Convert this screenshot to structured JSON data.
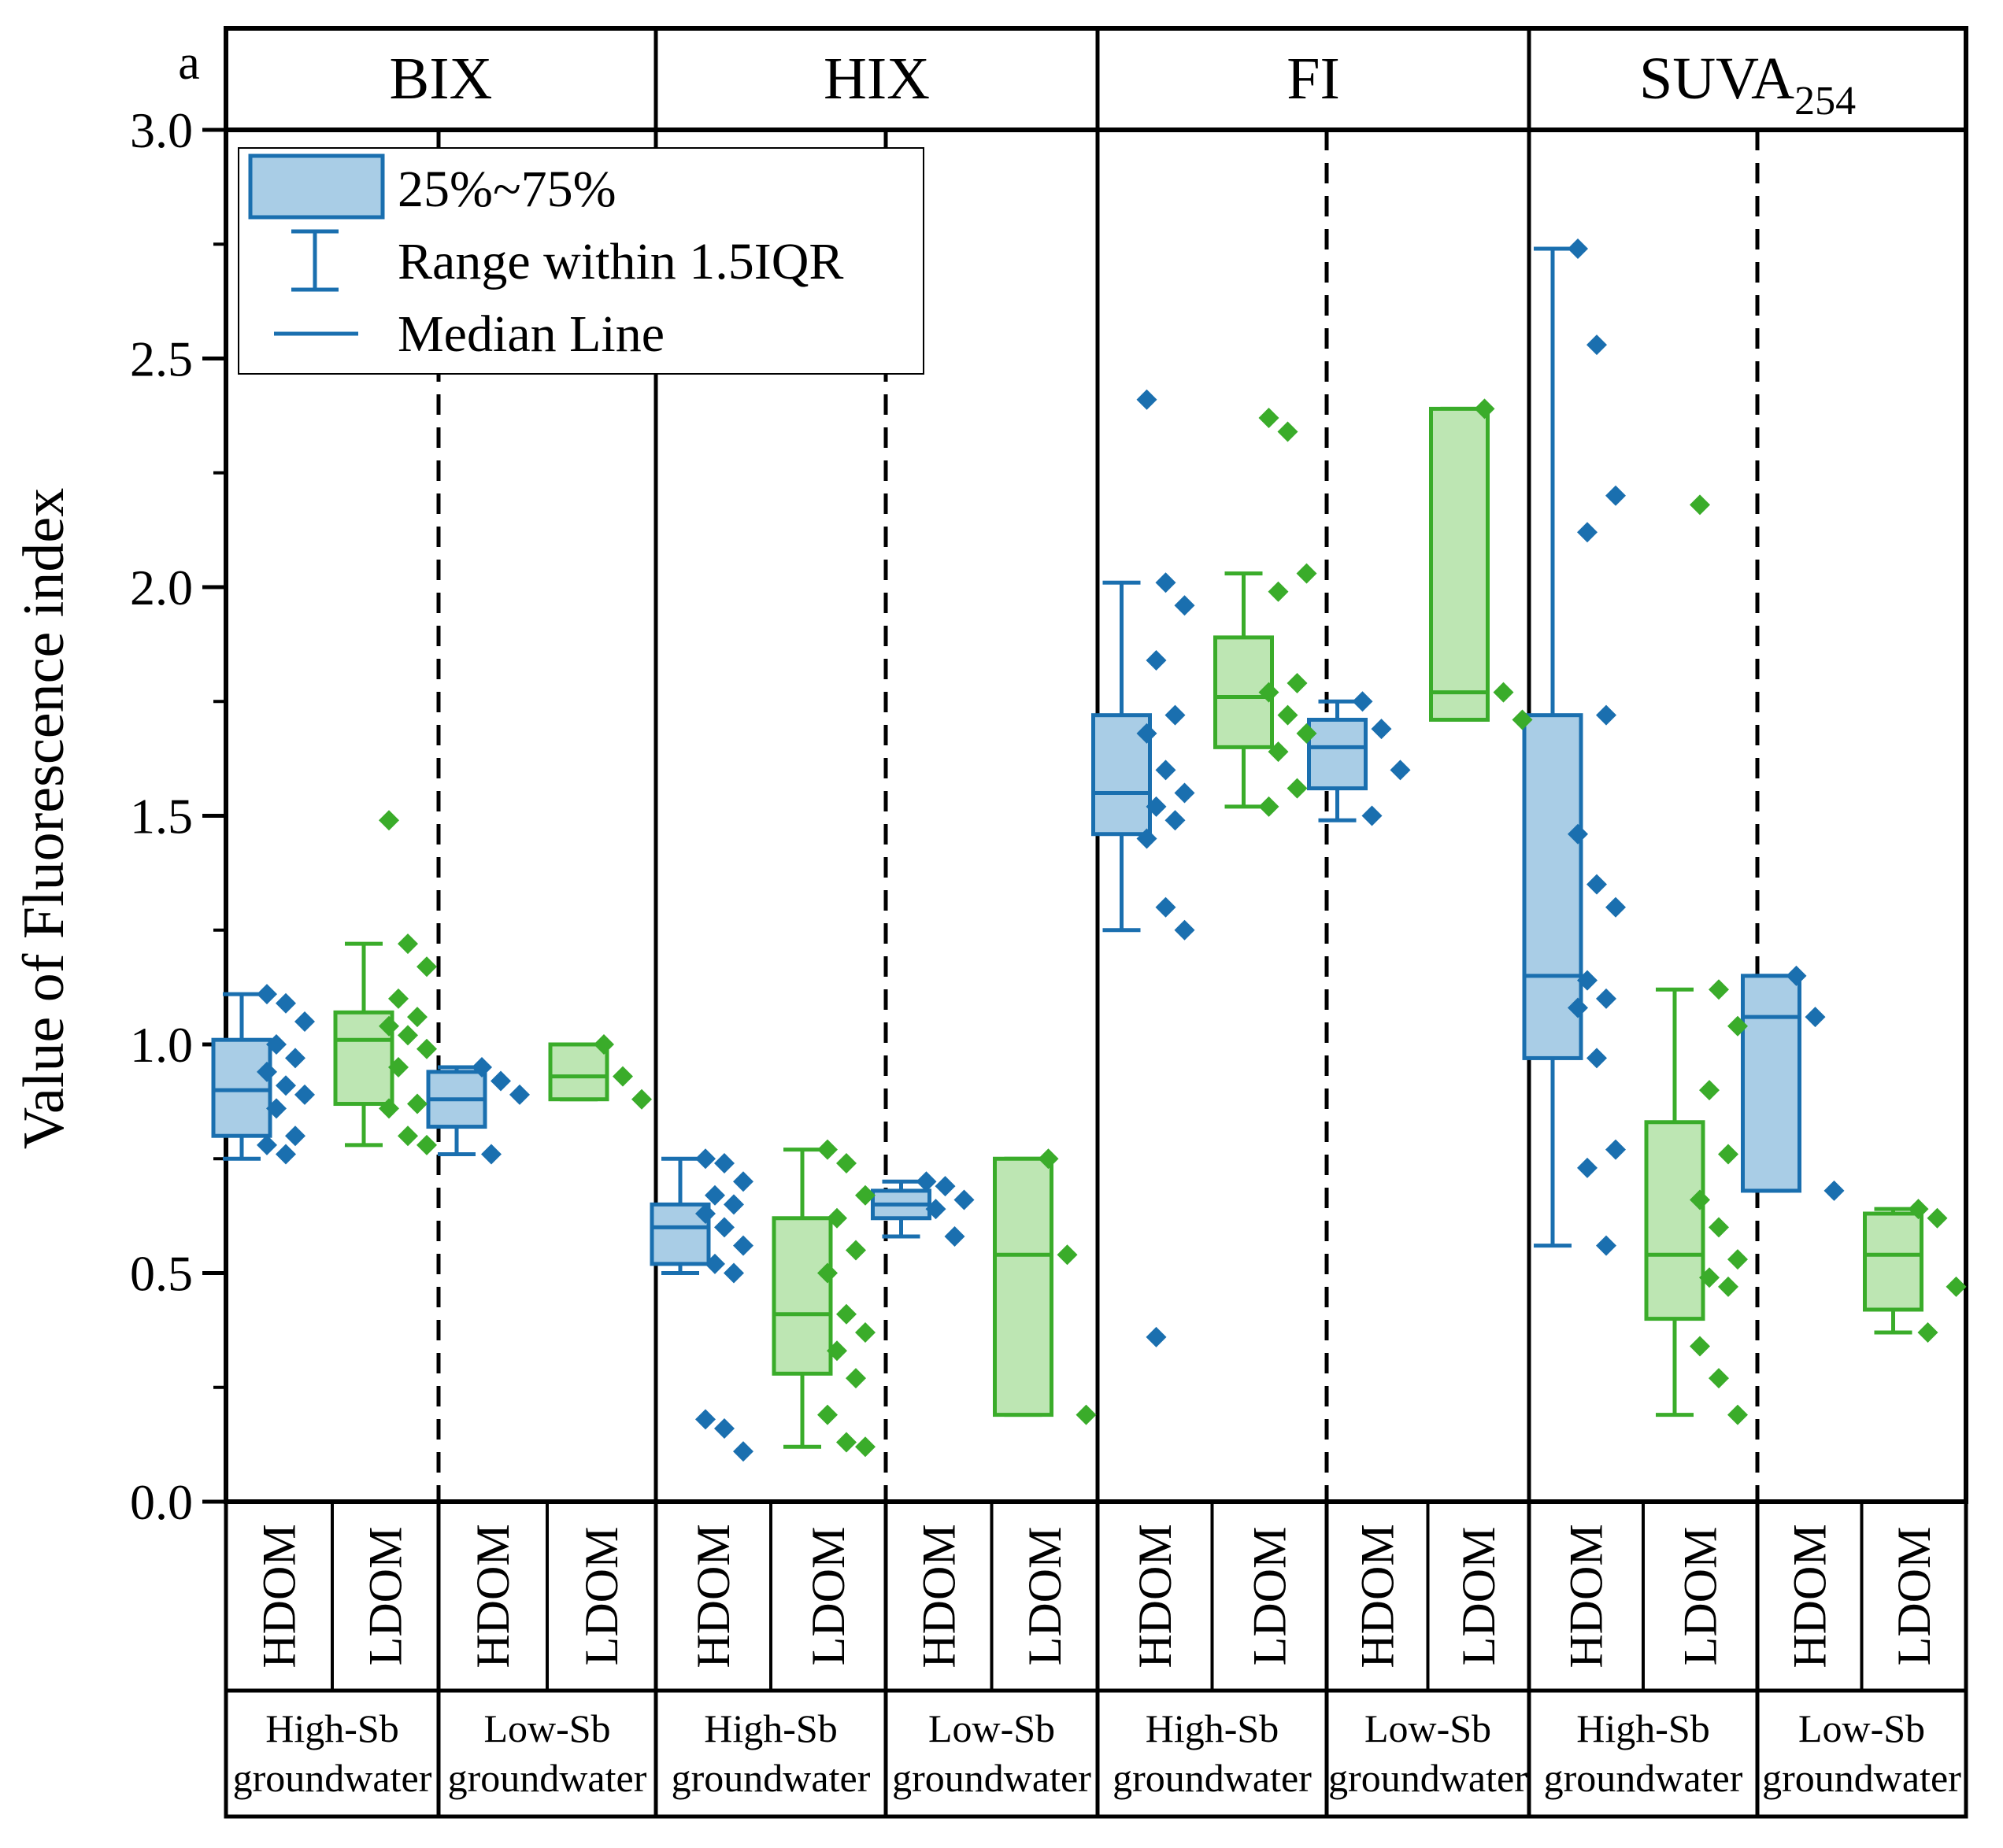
{
  "chart_data": {
    "type": "box",
    "panel_label": "a",
    "ylabel": "Value of Fluorescence index",
    "ylim": [
      0,
      3
    ],
    "yticks": [
      "0.0",
      "0.5",
      "1.0",
      "1.5",
      "2.0",
      "2.5",
      "3.0"
    ],
    "colors": {
      "HDOM": "#1a6faf",
      "LDOM": "#3aac2a",
      "HDOM_fill": "#a9cde6",
      "LDOM_fill": "#bde6b3"
    },
    "legend": {
      "box": "25%~75%",
      "whisker": "Range within 1.5IQR",
      "median": "Median Line"
    },
    "index_labels": [
      {
        "main": "BIX",
        "sub": ""
      },
      {
        "main": "HIX",
        "sub": ""
      },
      {
        "main": "FI",
        "sub": ""
      },
      {
        "main": "SUVA",
        "sub": "254"
      }
    ],
    "dom_labels": [
      "HDOM",
      "LDOM"
    ],
    "group_labels": [
      {
        "line1": "High-Sb",
        "line2": "groundwater"
      },
      {
        "line1": "Low-Sb",
        "line2": "groundwater"
      }
    ],
    "series": [
      {
        "index": "BIX",
        "group": "High-Sb groundwater",
        "dom": "HDOM",
        "q1": 0.8,
        "median": 0.9,
        "q3": 1.01,
        "wlow": 0.75,
        "whigh": 1.11,
        "points": [
          1.11,
          1.09,
          1.05,
          1.0,
          0.97,
          0.94,
          0.91,
          0.89,
          0.86,
          0.8,
          0.78,
          0.76
        ]
      },
      {
        "index": "BIX",
        "group": "High-Sb groundwater",
        "dom": "LDOM",
        "q1": 0.87,
        "median": 1.01,
        "q3": 1.07,
        "wlow": 0.78,
        "whigh": 1.22,
        "points": [
          1.49,
          1.22,
          1.17,
          1.1,
          1.06,
          1.04,
          1.02,
          0.99,
          0.95,
          0.87,
          0.86,
          0.8,
          0.78
        ]
      },
      {
        "index": "BIX",
        "group": "Low-Sb groundwater",
        "dom": "HDOM",
        "q1": 0.82,
        "median": 0.88,
        "q3": 0.94,
        "wlow": 0.76,
        "whigh": 0.95,
        "points": [
          0.95,
          0.92,
          0.89,
          0.76
        ]
      },
      {
        "index": "BIX",
        "group": "Low-Sb groundwater",
        "dom": "LDOM",
        "q1": 0.88,
        "median": 0.93,
        "q3": 1.0,
        "wlow": 0.88,
        "whigh": 1.0,
        "points": [
          1.0,
          0.93,
          0.88
        ]
      },
      {
        "index": "HIX",
        "group": "High-Sb groundwater",
        "dom": "HDOM",
        "q1": 0.52,
        "median": 0.6,
        "q3": 0.65,
        "wlow": 0.5,
        "whigh": 0.75,
        "points": [
          0.75,
          0.74,
          0.7,
          0.67,
          0.65,
          0.63,
          0.6,
          0.56,
          0.52,
          0.5,
          0.18,
          0.16,
          0.11
        ]
      },
      {
        "index": "HIX",
        "group": "High-Sb groundwater",
        "dom": "LDOM",
        "q1": 0.28,
        "median": 0.41,
        "q3": 0.62,
        "wlow": 0.12,
        "whigh": 0.77,
        "points": [
          0.77,
          0.74,
          0.67,
          0.62,
          0.55,
          0.5,
          0.41,
          0.37,
          0.33,
          0.27,
          0.19,
          0.13,
          0.12
        ]
      },
      {
        "index": "HIX",
        "group": "Low-Sb groundwater",
        "dom": "HDOM",
        "q1": 0.62,
        "median": 0.65,
        "q3": 0.68,
        "wlow": 0.58,
        "whigh": 0.7,
        "points": [
          0.7,
          0.69,
          0.66,
          0.64,
          0.58
        ]
      },
      {
        "index": "HIX",
        "group": "Low-Sb groundwater",
        "dom": "LDOM",
        "q1": 0.19,
        "median": 0.54,
        "q3": 0.75,
        "wlow": 0.19,
        "whigh": 0.75,
        "points": [
          0.75,
          0.54,
          0.19
        ]
      },
      {
        "index": "FI",
        "group": "High-Sb groundwater",
        "dom": "HDOM",
        "q1": 1.46,
        "median": 1.55,
        "q3": 1.72,
        "wlow": 1.25,
        "whigh": 2.01,
        "points": [
          2.41,
          2.01,
          1.96,
          1.84,
          1.72,
          1.68,
          1.6,
          1.55,
          1.52,
          1.49,
          1.45,
          1.3,
          1.25,
          0.36
        ]
      },
      {
        "index": "FI",
        "group": "High-Sb groundwater",
        "dom": "LDOM",
        "q1": 1.65,
        "median": 1.76,
        "q3": 1.89,
        "wlow": 1.52,
        "whigh": 2.03,
        "points": [
          2.37,
          2.34,
          2.03,
          1.99,
          1.79,
          1.77,
          1.72,
          1.68,
          1.64,
          1.56,
          1.52
        ]
      },
      {
        "index": "FI",
        "group": "Low-Sb groundwater",
        "dom": "HDOM",
        "q1": 1.56,
        "median": 1.65,
        "q3": 1.71,
        "wlow": 1.49,
        "whigh": 1.75,
        "points": [
          1.75,
          1.69,
          1.6,
          1.5
        ]
      },
      {
        "index": "FI",
        "group": "Low-Sb groundwater",
        "dom": "LDOM",
        "q1": 1.71,
        "median": 1.77,
        "q3": 2.39,
        "wlow": 1.71,
        "whigh": 2.39,
        "points": [
          2.39,
          1.77,
          1.71
        ]
      },
      {
        "index": "SUVA254",
        "group": "High-Sb groundwater",
        "dom": "HDOM",
        "q1": 0.97,
        "median": 1.15,
        "q3": 1.72,
        "wlow": 0.56,
        "whigh": 2.74,
        "points": [
          2.74,
          2.53,
          2.2,
          2.12,
          1.72,
          1.46,
          1.35,
          1.3,
          1.14,
          1.1,
          1.08,
          0.97,
          0.77,
          0.73,
          0.56
        ]
      },
      {
        "index": "SUVA254",
        "group": "High-Sb groundwater",
        "dom": "LDOM",
        "q1": 0.4,
        "median": 0.54,
        "q3": 0.83,
        "wlow": 0.19,
        "whigh": 1.12,
        "points": [
          2.18,
          1.12,
          1.04,
          0.9,
          0.76,
          0.66,
          0.6,
          0.53,
          0.49,
          0.47,
          0.34,
          0.27,
          0.19
        ]
      },
      {
        "index": "SUVA254",
        "group": "Low-Sb groundwater",
        "dom": "HDOM",
        "q1": 0.68,
        "median": 1.06,
        "q3": 1.15,
        "wlow": 0.68,
        "whigh": 1.15,
        "points": [
          1.15,
          1.06,
          0.68
        ]
      },
      {
        "index": "SUVA254",
        "group": "Low-Sb groundwater",
        "dom": "LDOM",
        "q1": 0.42,
        "median": 0.54,
        "q3": 0.63,
        "wlow": 0.37,
        "whigh": 0.64,
        "points": [
          0.64,
          0.62,
          0.47,
          0.37
        ]
      }
    ]
  }
}
